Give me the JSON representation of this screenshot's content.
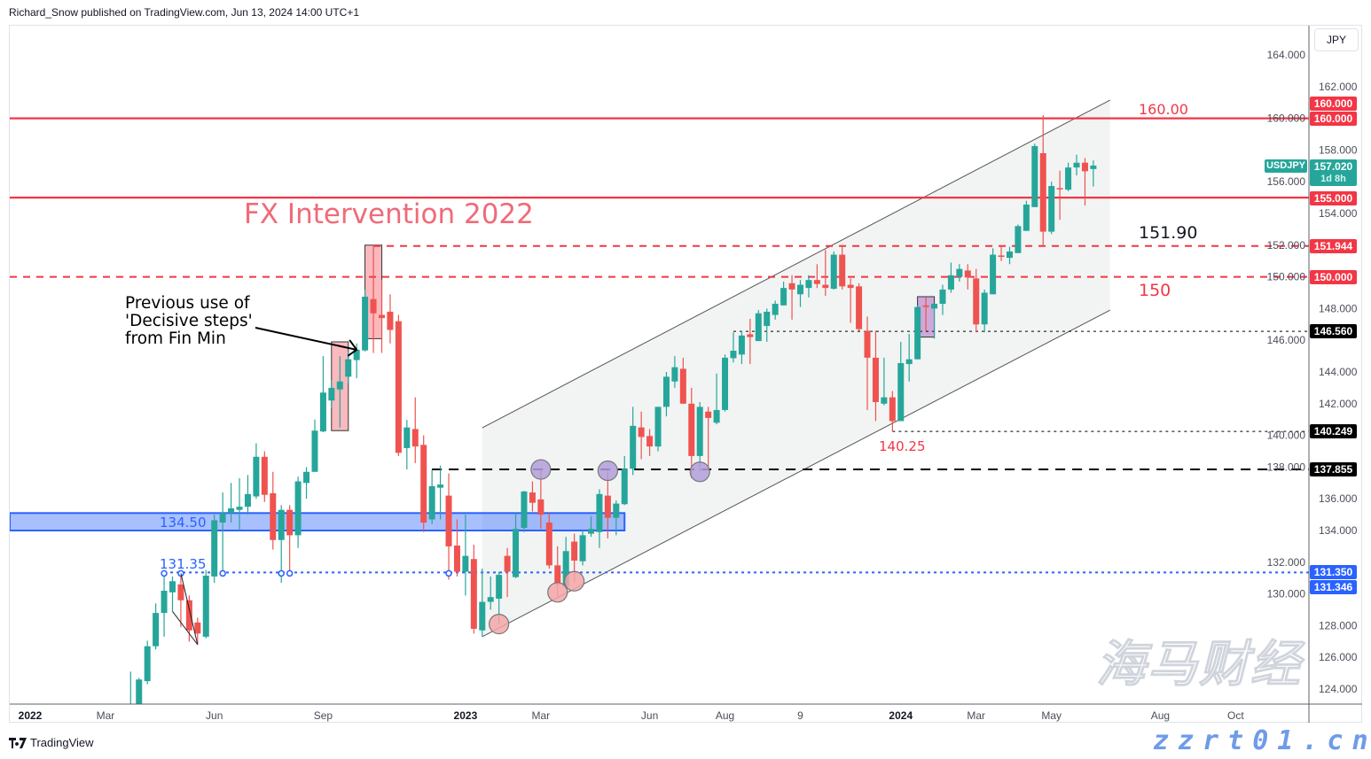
{
  "header": {
    "published": "Richard_Snow published on TradingView.com, Jun 13, 2024 14:00 UTC+1"
  },
  "footer": {
    "brand": "TradingView"
  },
  "watermark": {
    "text": "海马财经",
    "url": "zzrt01.cn"
  },
  "currency_button": "JPY",
  "symbol": {
    "name": "USDJPY",
    "last": "157.020",
    "countdown": "1d 8h",
    "color": "#26a69a"
  },
  "colors": {
    "up": "#26a69a",
    "down": "#ef5350",
    "level_red": "#f23645",
    "zone_blue": "#2962ff"
  },
  "price_badges": {
    "b160a": "160.000",
    "b160b": "160.000",
    "b155": "155.000",
    "b151944": "151.944",
    "b150": "150.000",
    "b14656": "146.560",
    "b140249": "140.249",
    "b137855": "137.855",
    "b13135": "131.350",
    "b131346": "131.346"
  },
  "annotations": {
    "fx_intervention": "FX Intervention 2022",
    "note_lines": [
      "Previous use of",
      "'Decisive steps'",
      "from Fin Min"
    ],
    "label_160": "160.00",
    "label_15190": "151.90",
    "label_150": "150",
    "label_14025": "140.25",
    "label_13450": "134.50",
    "label_13135": "131.35"
  },
  "chart_data": {
    "type": "candlestick",
    "symbol": "USDJPY",
    "interval": "weekly",
    "ylim": [
      123,
      165
    ],
    "grid": false,
    "y_ticks": [
      "164.000",
      "162.000",
      "160.000",
      "158.000",
      "156.000",
      "154.000",
      "152.000",
      "150.000",
      "148.000",
      "146.000",
      "144.000",
      "142.000",
      "140.000",
      "138.000",
      "136.000",
      "134.000",
      "132.000",
      "130.000",
      "128.000",
      "126.000",
      "124.000"
    ],
    "x_ticks": [
      {
        "date": "2022-01-03",
        "label": "2022",
        "bold": true
      },
      {
        "date": "2022-03-07",
        "label": "Mar"
      },
      {
        "date": "2022-06-06",
        "label": "Jun"
      },
      {
        "date": "2022-09-05",
        "label": "Sep"
      },
      {
        "date": "2023-01-02",
        "label": "2023",
        "bold": true
      },
      {
        "date": "2023-03-06",
        "label": "Mar"
      },
      {
        "date": "2023-06-05",
        "label": "Jun"
      },
      {
        "date": "2023-08-07",
        "label": "Aug"
      },
      {
        "date": "2023-10-09",
        "label": "9"
      },
      {
        "date": "2024-01-01",
        "label": "2024",
        "bold": true
      },
      {
        "date": "2024-03-04",
        "label": "Mar"
      },
      {
        "date": "2024-05-06",
        "label": "May"
      },
      {
        "date": "2024-08-05",
        "label": "Aug"
      },
      {
        "date": "2024-10-07",
        "label": "Oct"
      }
    ],
    "candles": [
      [
        "2022-03-28",
        122.4,
        125.1,
        121.2,
        122.5
      ],
      [
        "2022-04-04",
        122.6,
        124.7,
        122.4,
        124.6
      ],
      [
        "2022-04-11",
        124.5,
        127.05,
        124.3,
        126.7
      ],
      [
        "2022-04-18",
        126.7,
        129.4,
        126.5,
        128.8
      ],
      [
        "2022-04-25",
        128.8,
        131.3,
        127.3,
        130.2
      ],
      [
        "2022-05-02",
        130.1,
        131.1,
        128.9,
        130.8
      ],
      [
        "2022-05-09",
        130.6,
        131.3,
        127.9,
        129.6
      ],
      [
        "2022-05-16",
        129.6,
        129.9,
        127.0,
        127.7
      ],
      [
        "2022-05-23",
        128.2,
        128.5,
        126.8,
        127.5
      ],
      [
        "2022-05-30",
        127.3,
        131.5,
        127.2,
        131.15
      ],
      [
        "2022-06-06",
        131.1,
        135.0,
        130.7,
        134.65
      ],
      [
        "2022-06-13",
        134.5,
        136.4,
        131.4,
        135.1
      ],
      [
        "2022-06-20",
        135.1,
        137.0,
        134.5,
        135.4
      ],
      [
        "2022-06-27",
        135.3,
        137.3,
        134.0,
        135.5
      ],
      [
        "2022-07-04",
        135.5,
        137.5,
        135.0,
        136.3
      ],
      [
        "2022-07-11",
        136.15,
        139.5,
        136.0,
        138.65
      ],
      [
        "2022-07-18",
        138.65,
        139.0,
        135.8,
        136.25
      ],
      [
        "2022-07-25",
        136.35,
        137.7,
        132.8,
        133.4
      ],
      [
        "2022-08-01",
        133.4,
        135.6,
        130.7,
        135.3
      ],
      [
        "2022-08-08",
        135.3,
        135.6,
        131.3,
        133.7
      ],
      [
        "2022-08-15",
        133.7,
        137.4,
        132.9,
        137.1
      ],
      [
        "2022-08-22",
        137.0,
        138.0,
        136.0,
        137.7
      ],
      [
        "2022-08-29",
        137.7,
        141.0,
        137.7,
        140.3
      ],
      [
        "2022-09-05",
        140.25,
        145.0,
        140.2,
        142.7
      ],
      [
        "2022-09-12",
        142.2,
        143.5,
        141.7,
        143.0
      ],
      [
        "2022-09-19",
        142.9,
        144.99,
        140.5,
        143.4
      ],
      [
        "2022-09-26",
        143.7,
        145.3,
        143.3,
        144.8
      ],
      [
        "2022-10-03",
        144.75,
        145.8,
        143.6,
        145.4
      ],
      [
        "2022-10-10",
        145.36,
        149.2,
        145.3,
        148.75
      ],
      [
        "2022-10-17",
        148.6,
        151.94,
        145.2,
        147.7
      ],
      [
        "2022-10-24",
        147.6,
        149.8,
        145.2,
        147.4
      ],
      [
        "2022-10-31",
        147.8,
        148.9,
        145.8,
        146.65
      ],
      [
        "2022-11-07",
        147.2,
        147.6,
        138.7,
        138.9
      ],
      [
        "2022-11-14",
        139.2,
        140.98,
        137.85,
        140.5
      ],
      [
        "2022-11-21",
        140.4,
        142.4,
        138.25,
        139.3
      ],
      [
        "2022-11-28",
        139.4,
        140.0,
        133.9,
        134.5
      ],
      [
        "2022-12-05",
        134.7,
        137.8,
        134.4,
        136.8
      ],
      [
        "2022-12-12",
        136.7,
        138.1,
        134.7,
        136.9
      ],
      [
        "2022-12-19",
        136.2,
        137.6,
        130.9,
        133.0
      ],
      [
        "2022-12-26",
        133.05,
        134.7,
        131.1,
        131.4
      ],
      [
        "2023-01-02",
        131.4,
        135.0,
        129.9,
        132.4
      ],
      [
        "2023-01-09",
        132.2,
        133.1,
        127.5,
        127.8
      ],
      [
        "2023-01-16",
        127.7,
        131.6,
        127.3,
        129.5
      ],
      [
        "2023-01-23",
        129.5,
        131.1,
        129.0,
        129.8
      ],
      [
        "2023-01-30",
        129.7,
        131.4,
        128.1,
        131.2
      ],
      [
        "2023-02-06",
        132.4,
        132.9,
        129.8,
        131.4
      ],
      [
        "2023-02-13",
        131.06,
        135.1,
        131.0,
        134.1
      ],
      [
        "2023-02-20",
        134.17,
        136.5,
        133.9,
        136.46
      ],
      [
        "2023-02-27",
        136.4,
        137.1,
        135.2,
        135.75
      ],
      [
        "2023-03-06",
        135.96,
        137.85,
        134.1,
        135.0
      ],
      [
        "2023-03-13",
        134.5,
        135.1,
        131.6,
        131.8
      ],
      [
        "2023-03-20",
        131.8,
        133.0,
        129.7,
        130.6
      ],
      [
        "2023-03-27",
        130.5,
        133.6,
        130.4,
        132.7
      ],
      [
        "2023-04-03",
        133.3,
        133.8,
        130.7,
        132.1
      ],
      [
        "2023-04-10",
        132.06,
        134.0,
        131.8,
        133.7
      ],
      [
        "2023-04-17",
        133.8,
        134.9,
        133.6,
        134.1
      ],
      [
        "2023-04-24",
        133.9,
        136.6,
        132.9,
        136.3
      ],
      [
        "2023-05-01",
        136.2,
        137.77,
        133.5,
        134.8
      ],
      [
        "2023-05-08",
        134.8,
        135.9,
        133.7,
        135.7
      ],
      [
        "2023-05-15",
        135.66,
        138.7,
        135.6,
        137.9
      ],
      [
        "2023-05-22",
        137.9,
        141.8,
        137.5,
        140.6
      ],
      [
        "2023-05-29",
        140.5,
        141.5,
        138.5,
        139.9
      ],
      [
        "2023-06-05",
        139.96,
        140.4,
        138.7,
        139.3
      ],
      [
        "2023-06-12",
        139.3,
        141.8,
        139.0,
        141.8
      ],
      [
        "2023-06-19",
        141.8,
        144.0,
        141.2,
        143.7
      ],
      [
        "2023-06-26",
        143.4,
        145.0,
        143.0,
        144.3
      ],
      [
        "2023-07-03",
        144.2,
        144.9,
        142.0,
        142.0
      ],
      [
        "2023-07-10",
        142.0,
        143.0,
        137.3,
        138.7
      ],
      [
        "2023-07-17",
        138.7,
        142.1,
        137.7,
        141.8
      ],
      [
        "2023-07-24",
        141.5,
        141.8,
        138.0,
        141.1
      ],
      [
        "2023-07-31",
        140.8,
        143.9,
        140.7,
        141.6
      ],
      [
        "2023-08-07",
        141.6,
        145.1,
        141.5,
        144.9
      ],
      [
        "2023-08-14",
        144.87,
        146.5,
        144.6,
        145.34
      ],
      [
        "2023-08-21",
        145.1,
        146.6,
        144.5,
        146.3
      ],
      [
        "2023-08-28",
        146.38,
        147.35,
        144.5,
        146.2
      ],
      [
        "2023-09-04",
        145.95,
        147.9,
        145.95,
        147.7
      ],
      [
        "2023-09-11",
        146.9,
        148.0,
        145.9,
        147.8
      ],
      [
        "2023-09-18",
        147.6,
        148.5,
        147.3,
        148.3
      ],
      [
        "2023-09-25",
        148.2,
        149.7,
        148.2,
        149.3
      ],
      [
        "2023-10-02",
        149.6,
        150.1,
        147.3,
        149.2
      ],
      [
        "2023-10-09",
        148.9,
        149.8,
        148.1,
        149.5
      ],
      [
        "2023-10-16",
        149.3,
        150.1,
        148.7,
        149.8
      ],
      [
        "2023-10-23",
        149.8,
        150.8,
        149.3,
        149.55
      ],
      [
        "2023-10-30",
        149.5,
        151.7,
        148.8,
        149.3
      ],
      [
        "2023-11-06",
        149.25,
        151.6,
        149.2,
        151.4
      ],
      [
        "2023-11-13",
        151.4,
        151.94,
        149.2,
        149.4
      ],
      [
        "2023-11-20",
        149.5,
        149.9,
        147.1,
        149.3
      ],
      [
        "2023-11-27",
        149.4,
        149.6,
        146.6,
        146.7
      ],
      [
        "2023-12-04",
        146.6,
        147.5,
        141.6,
        144.9
      ],
      [
        "2023-12-11",
        144.9,
        146.6,
        140.9,
        142.1
      ],
      [
        "2023-12-18",
        142.0,
        144.9,
        141.9,
        142.4
      ],
      [
        "2023-12-25",
        142.4,
        142.8,
        140.25,
        140.9
      ],
      [
        "2024-01-01",
        140.9,
        145.9,
        140.9,
        144.56
      ],
      [
        "2024-01-08",
        144.5,
        146.4,
        143.4,
        144.8
      ],
      [
        "2024-01-15",
        144.8,
        148.2,
        144.8,
        148.1
      ],
      [
        "2024-01-22",
        148.2,
        148.7,
        146.6,
        148.1
      ],
      [
        "2024-01-29",
        148.0,
        148.3,
        146.1,
        148.3
      ],
      [
        "2024-02-05",
        148.3,
        149.5,
        147.6,
        149.2
      ],
      [
        "2024-02-12",
        149.2,
        150.9,
        149.0,
        150.1
      ],
      [
        "2024-02-19",
        150.0,
        150.8,
        149.7,
        150.5
      ],
      [
        "2024-02-26",
        150.4,
        150.8,
        149.2,
        149.96
      ],
      [
        "2024-03-04",
        149.9,
        150.5,
        146.5,
        147.0
      ],
      [
        "2024-03-11",
        147.0,
        149.2,
        146.5,
        149.0
      ],
      [
        "2024-03-18",
        148.9,
        151.8,
        148.9,
        151.4
      ],
      [
        "2024-03-25",
        151.35,
        151.9,
        151.0,
        151.26
      ],
      [
        "2024-04-01",
        151.2,
        151.9,
        150.8,
        151.6
      ],
      [
        "2024-04-08",
        151.5,
        153.3,
        151.5,
        153.2
      ],
      [
        "2024-04-15",
        152.9,
        154.8,
        152.9,
        154.56
      ],
      [
        "2024-04-22",
        154.4,
        158.4,
        154.4,
        158.25
      ],
      [
        "2024-04-29",
        157.8,
        160.2,
        151.9,
        152.85
      ],
      [
        "2024-05-06",
        152.85,
        156.0,
        152.7,
        155.73
      ],
      [
        "2024-05-13",
        155.6,
        156.7,
        153.6,
        155.58
      ],
      [
        "2024-05-20",
        155.5,
        157.2,
        155.4,
        156.9
      ],
      [
        "2024-05-27",
        156.9,
        157.7,
        156.4,
        157.2
      ],
      [
        "2024-06-03",
        157.2,
        157.5,
        154.5,
        156.66
      ],
      [
        "2024-06-10",
        156.8,
        157.35,
        155.7,
        157.02
      ]
    ],
    "levels": [
      {
        "price": 160.0,
        "style": "solid",
        "color": "#f23645",
        "from": null
      },
      {
        "price": 155.0,
        "style": "solid",
        "color": "#f23645",
        "from": null
      },
      {
        "price": 151.944,
        "style": "dashed",
        "color": "#f23645",
        "from": "2022-10-17"
      },
      {
        "price": 150.0,
        "style": "dashed",
        "color": "#f23645",
        "from": null
      },
      {
        "price": 146.56,
        "style": "dotted",
        "color": "#000000",
        "from": "2023-08-14"
      },
      {
        "price": 140.249,
        "style": "dotted",
        "color": "#000000",
        "from": "2023-12-25"
      },
      {
        "price": 137.855,
        "style": "dashed-bold",
        "color": "#000000",
        "from": "2022-12-05"
      },
      {
        "price": 131.35,
        "style": "dotted",
        "color": "#2962ff",
        "from": "2022-04-25"
      }
    ],
    "channel": {
      "upper": [
        [
          "2023-01-16",
          140.48
        ],
        [
          "2024-06-24",
          161.15
        ]
      ],
      "lower": [
        [
          "2023-01-16",
          127.3
        ],
        [
          "2024-06-24",
          147.9
        ]
      ]
    },
    "zone": {
      "from": null,
      "to": "2023-05-15",
      "low": 134.0,
      "high": 135.1
    },
    "highlight_boxes": [
      {
        "date": "2022-09-19",
        "low": 140.3,
        "high": 145.9,
        "color": "#f7a1a8"
      },
      {
        "date": "2022-10-17",
        "low": 146.1,
        "high": 152.0,
        "color": "#f7a1a8"
      },
      {
        "date": "2024-01-22",
        "low": 146.2,
        "high": 148.75,
        "color": "#c18fd0"
      }
    ],
    "circles": [
      {
        "date": "2023-03-06",
        "price": 137.85,
        "color": "#b39ddb"
      },
      {
        "date": "2023-05-01",
        "price": 137.77,
        "color": "#b39ddb"
      },
      {
        "date": "2023-07-17",
        "price": 137.7,
        "color": "#b39ddb"
      },
      {
        "date": "2023-01-30",
        "price": 128.1,
        "color": "#f4a6a8"
      },
      {
        "date": "2023-03-20",
        "price": 130.1,
        "color": "#f4a6a8"
      },
      {
        "date": "2023-04-03",
        "price": 130.8,
        "color": "#f4a6a8"
      }
    ],
    "markers_131": [
      "2022-04-25",
      "2022-05-09",
      "2022-06-13",
      "2022-08-01",
      "2022-08-08",
      "2022-12-19"
    ],
    "trend_lines": [
      [
        [
          "2022-05-09",
          131.3
        ],
        [
          "2022-05-23",
          126.8
        ]
      ],
      [
        [
          "2022-05-02",
          128.9
        ],
        [
          "2022-05-23",
          126.8
        ]
      ]
    ],
    "arrow_target": [
      "2022-10-03",
      145.4
    ]
  }
}
